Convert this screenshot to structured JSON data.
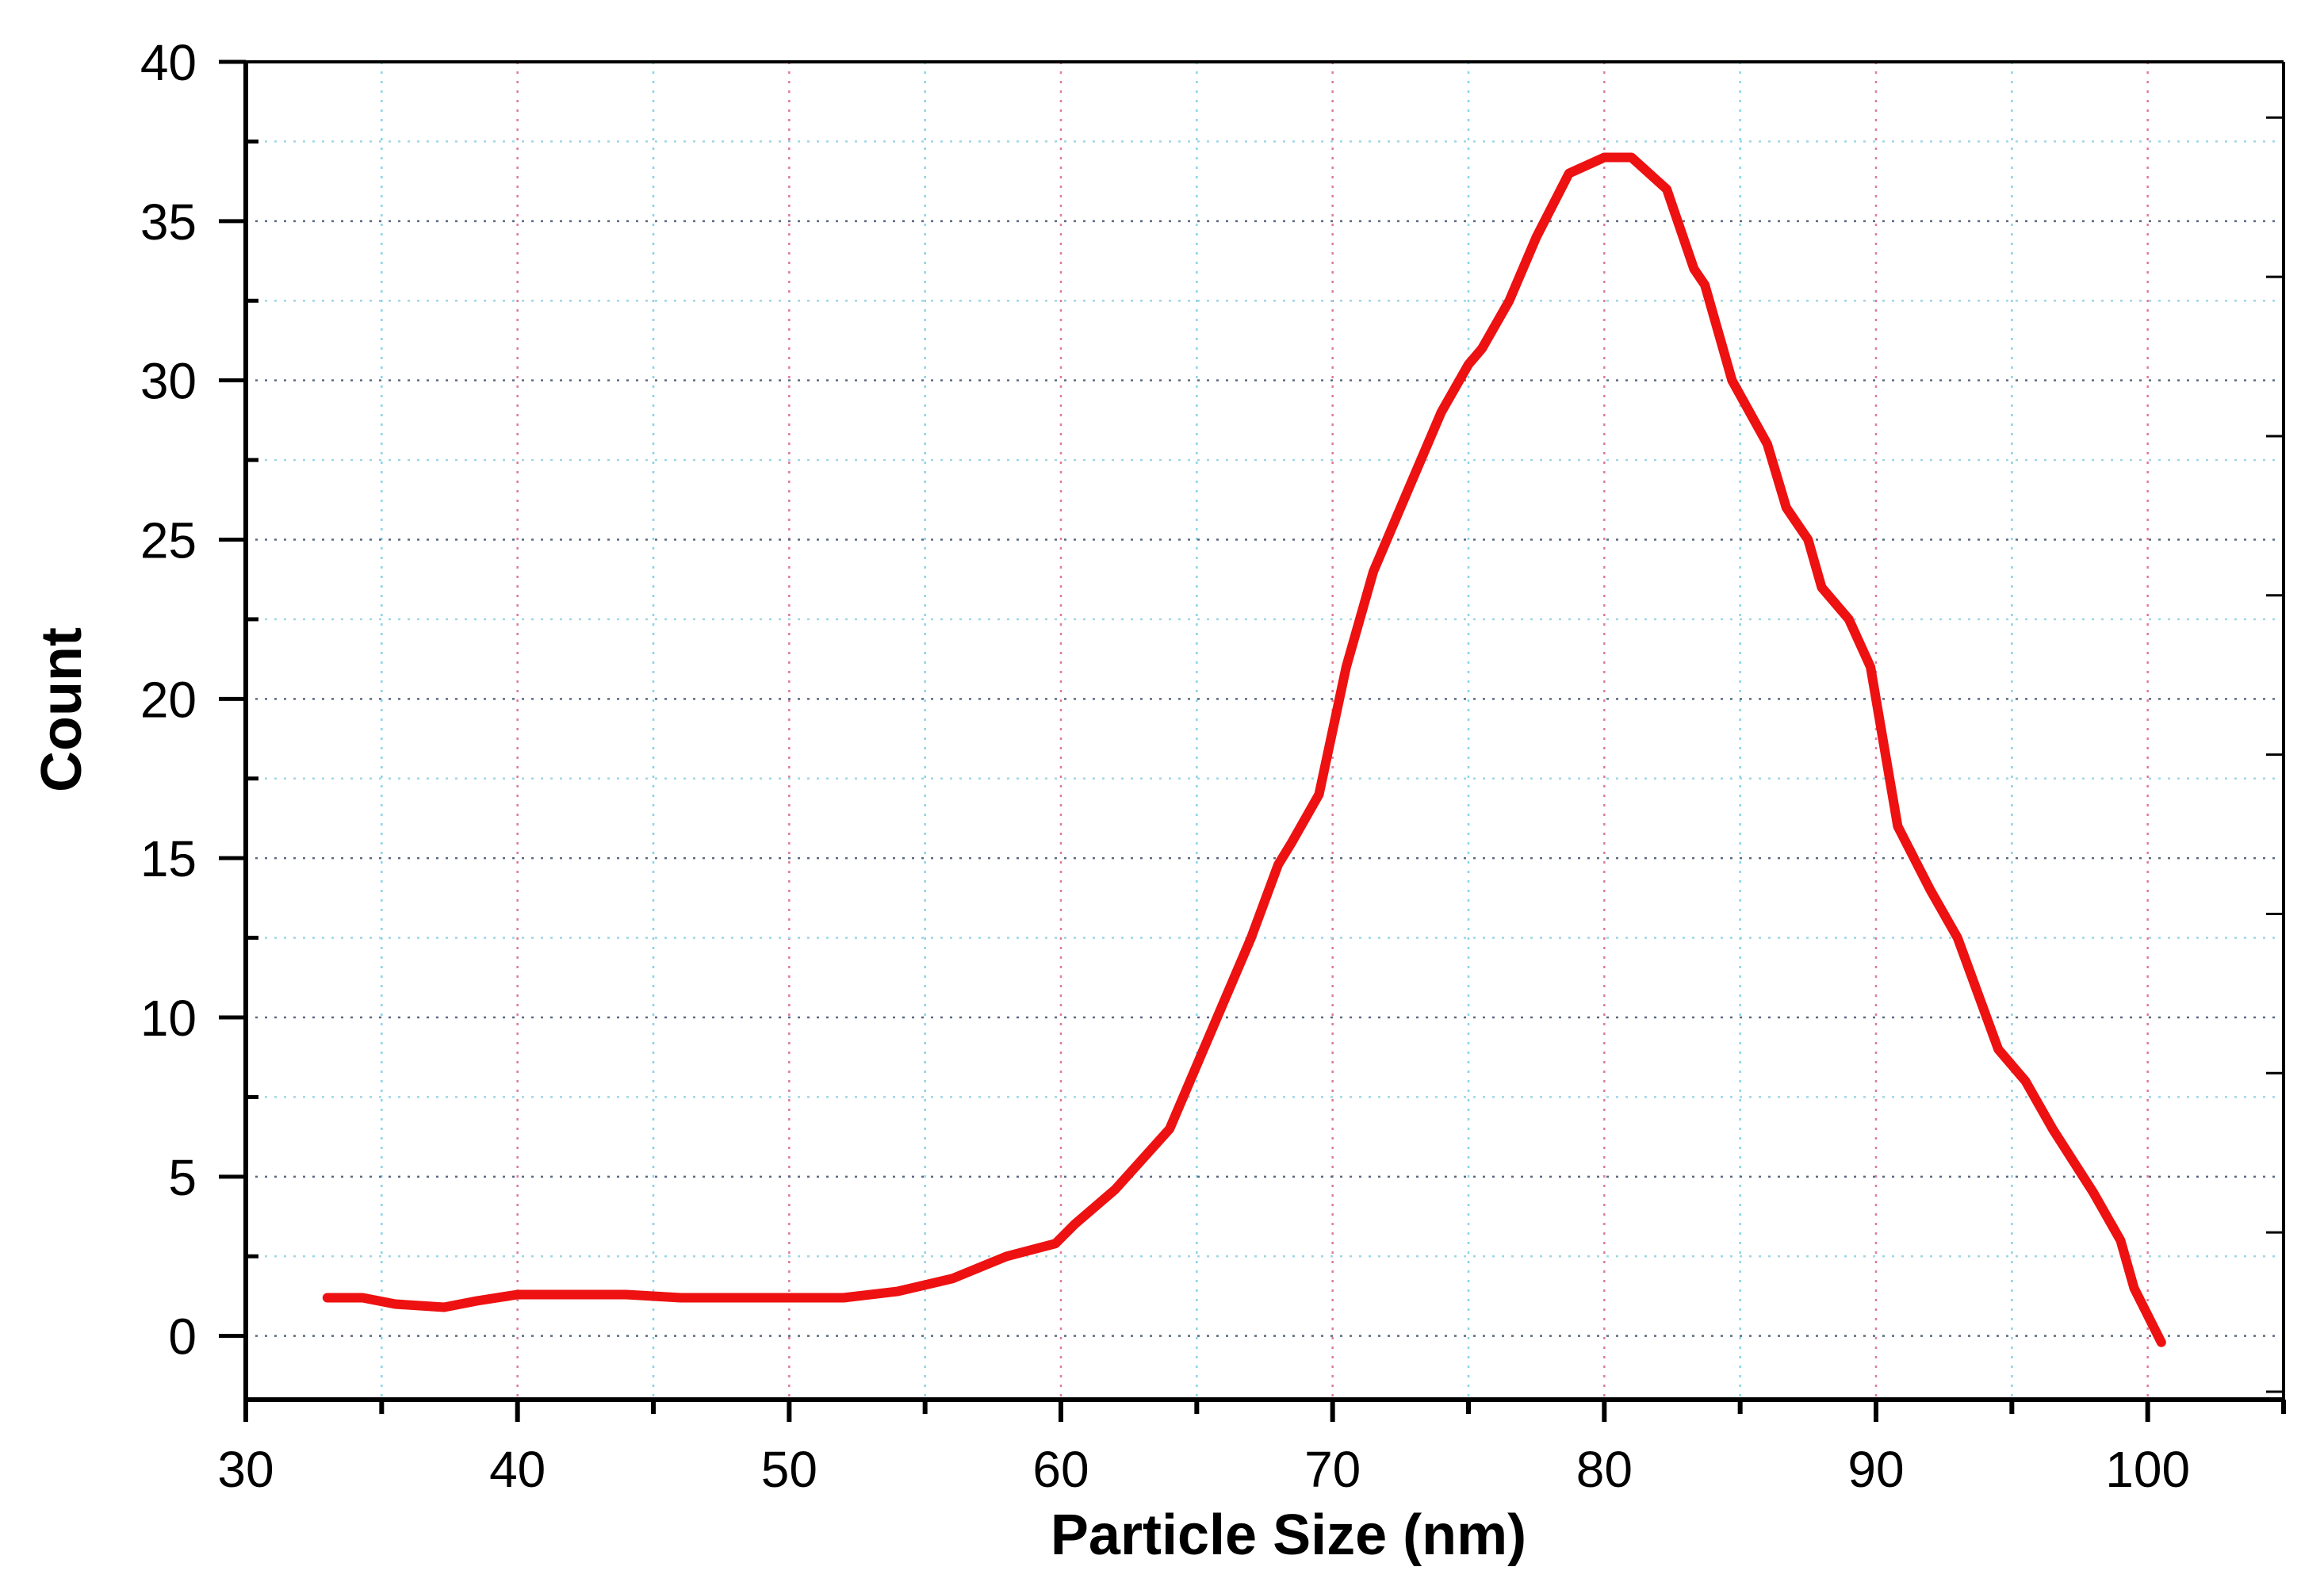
{
  "chart_data": {
    "type": "line",
    "title": "",
    "xlabel": "Particle Size (nm)",
    "ylabel": "Count",
    "xlim": [
      30,
      105
    ],
    "ylim": [
      -2,
      40
    ],
    "xticks": [
      30,
      40,
      50,
      60,
      70,
      80,
      90,
      100
    ],
    "yticks": [
      0,
      5,
      10,
      15,
      20,
      25,
      30,
      35,
      40
    ],
    "grid": true,
    "legend": "none",
    "series": [
      {
        "name": "Count",
        "color": "#ee1111",
        "x": [
          33,
          34.3,
          35.5,
          37.3,
          38.5,
          40,
          42,
          44,
          46,
          48,
          50,
          52,
          54,
          56,
          58,
          59.8,
          60.5,
          62,
          64,
          65.5,
          67,
          68,
          68.5,
          69.5,
          70.5,
          71.5,
          72.5,
          74,
          75,
          75.5,
          76.5,
          77.5,
          78.7,
          80,
          81,
          82.3,
          83.3,
          83.7,
          84.7,
          86,
          86.7,
          87.5,
          88,
          89,
          89.8,
          90.8,
          92,
          93,
          94.5,
          95.5,
          96.5,
          98,
          99,
          99.5,
          100.5
        ],
        "values": [
          1.2,
          1.2,
          1.0,
          0.9,
          1.1,
          1.3,
          1.3,
          1.3,
          1.2,
          1.2,
          1.2,
          1.2,
          1.4,
          1.8,
          2.5,
          2.9,
          3.5,
          4.6,
          6.5,
          9.5,
          12.5,
          14.8,
          15.5,
          17.0,
          21.0,
          24.0,
          26.0,
          29.0,
          30.5,
          31.0,
          32.5,
          34.5,
          36.5,
          37.0,
          37.0,
          36.0,
          33.5,
          33.0,
          30.0,
          28.0,
          26.0,
          25.0,
          23.5,
          22.5,
          21.0,
          16.0,
          14.0,
          12.5,
          9.0,
          8.0,
          6.5,
          4.5,
          3.0,
          1.5,
          -0.2
        ]
      }
    ]
  }
}
